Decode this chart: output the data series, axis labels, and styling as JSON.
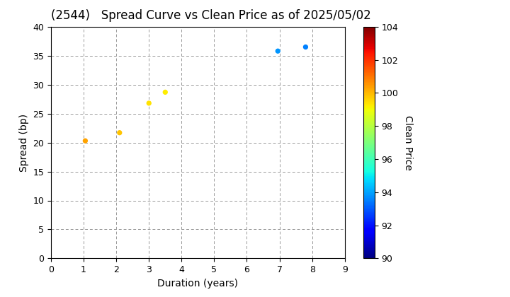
{
  "title": "(2544)   Spread Curve vs Clean Price as of 2025/05/02",
  "xlabel": "Duration (years)",
  "ylabel": "Spread (bp)",
  "colorbar_label": "Clean Price",
  "xlim": [
    0,
    9
  ],
  "ylim": [
    0,
    40
  ],
  "xticks": [
    0,
    1,
    2,
    3,
    4,
    5,
    6,
    7,
    8,
    9
  ],
  "yticks": [
    0,
    5,
    10,
    15,
    20,
    25,
    30,
    35,
    40
  ],
  "colorbar_min": 90,
  "colorbar_max": 104,
  "colorbar_ticks": [
    90,
    92,
    94,
    96,
    98,
    100,
    102,
    104
  ],
  "points": [
    {
      "duration": 1.05,
      "spread": 20.3,
      "price": 100.3
    },
    {
      "duration": 2.1,
      "spread": 21.7,
      "price": 99.8
    },
    {
      "duration": 3.0,
      "spread": 26.8,
      "price": 99.4
    },
    {
      "duration": 3.5,
      "spread": 28.7,
      "price": 99.2
    },
    {
      "duration": 6.95,
      "spread": 35.8,
      "price": 93.8
    },
    {
      "duration": 7.8,
      "spread": 36.5,
      "price": 93.5
    }
  ],
  "marker_size": 18,
  "grid_color": "#999999",
  "title_fontsize": 12,
  "axis_fontsize": 10
}
